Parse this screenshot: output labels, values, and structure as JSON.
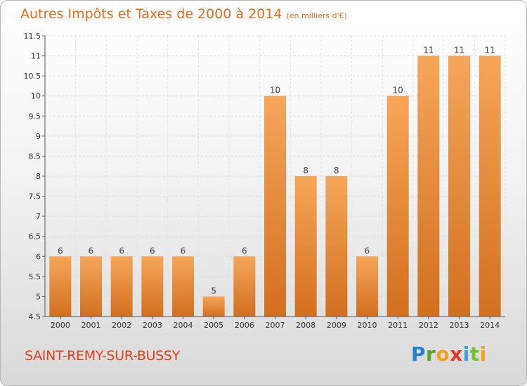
{
  "title": "Autres Impôts et Taxes de 2000 à 2014",
  "unit_label": "(en milliers d'€)",
  "commune": "SAINT-REMY-SUR-BUSSY",
  "brand": {
    "letters": [
      "P",
      "r",
      "o",
      "x",
      "i",
      "t",
      "i"
    ],
    "colors": [
      "#2a7fd4",
      "#5aa12f",
      "#f0a21a",
      "#e23b2c",
      "#3aa0df",
      "#7bbf2f",
      "#f0a21a"
    ]
  },
  "colors": {
    "bar": "#ef9a3f",
    "bar_dark": "#d9782a",
    "title": "#ee6a1e",
    "commune": "#e3421f"
  },
  "chart_data": {
    "type": "bar",
    "categories": [
      "2000",
      "2001",
      "2002",
      "2003",
      "2004",
      "2005",
      "2006",
      "2007",
      "2008",
      "2009",
      "2010",
      "2011",
      "2012",
      "2013",
      "2014"
    ],
    "values": [
      6,
      6,
      6,
      6,
      6,
      5,
      6,
      10,
      8,
      8,
      6,
      10,
      11,
      11,
      11
    ],
    "ylim": [
      4.5,
      11.5
    ],
    "yticks": [
      "4.5",
      "5",
      "5.5",
      "6",
      "6.5",
      "7",
      "7.5",
      "8",
      "8.5",
      "9",
      "9.5",
      "10",
      "10.5",
      "11",
      "11.5"
    ],
    "grid": true
  }
}
